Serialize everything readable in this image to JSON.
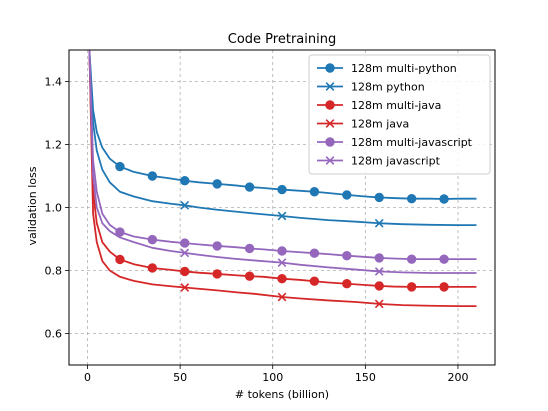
{
  "chart_data": {
    "type": "line",
    "title": "Code Pretraining",
    "xlabel": "# tokens (billion)",
    "ylabel": "validation loss",
    "xlim": [
      -10,
      220
    ],
    "ylim": [
      0.5,
      1.5
    ],
    "xticks": [
      0,
      50,
      100,
      150,
      200
    ],
    "yticks": [
      0.6,
      0.8,
      1.0,
      1.2,
      1.4
    ],
    "grid": true,
    "legend_position": "top-right",
    "series": [
      {
        "name": "128m multi-python",
        "color": "#1f77b4",
        "marker": "circle",
        "points": [
          [
            1,
            1.5
          ],
          [
            3,
            1.31
          ],
          [
            5,
            1.24
          ],
          [
            8,
            1.19
          ],
          [
            12,
            1.155
          ],
          [
            17.5,
            1.13
          ],
          [
            25,
            1.113
          ],
          [
            35,
            1.1
          ],
          [
            45,
            1.092
          ],
          [
            52.5,
            1.085
          ],
          [
            60,
            1.08
          ],
          [
            70,
            1.075
          ],
          [
            80,
            1.07
          ],
          [
            87.5,
            1.065
          ],
          [
            95,
            1.062
          ],
          [
            105,
            1.057
          ],
          [
            115,
            1.053
          ],
          [
            122.5,
            1.05
          ],
          [
            130,
            1.046
          ],
          [
            140,
            1.04
          ],
          [
            150,
            1.035
          ],
          [
            157.5,
            1.032
          ],
          [
            165,
            1.03
          ],
          [
            175,
            1.028
          ],
          [
            185,
            1.028
          ],
          [
            192.5,
            1.027
          ],
          [
            200,
            1.028
          ],
          [
            210,
            1.028
          ]
        ],
        "marker_x": [
          17.5,
          35,
          52.5,
          70,
          87.5,
          105,
          122.5,
          140,
          157.5,
          175,
          192.5
        ]
      },
      {
        "name": "128m python",
        "color": "#1f77b4",
        "marker": "x",
        "points": [
          [
            1,
            1.5
          ],
          [
            3,
            1.27
          ],
          [
            5,
            1.18
          ],
          [
            8,
            1.12
          ],
          [
            12,
            1.08
          ],
          [
            17.5,
            1.05
          ],
          [
            25,
            1.035
          ],
          [
            35,
            1.02
          ],
          [
            45,
            1.012
          ],
          [
            52.5,
            1.007
          ],
          [
            60,
            1.0
          ],
          [
            70,
            0.993
          ],
          [
            80,
            0.987
          ],
          [
            90,
            0.981
          ],
          [
            105,
            0.973
          ],
          [
            115,
            0.967
          ],
          [
            130,
            0.96
          ],
          [
            145,
            0.955
          ],
          [
            157.5,
            0.95
          ],
          [
            170,
            0.947
          ],
          [
            185,
            0.945
          ],
          [
            200,
            0.944
          ],
          [
            210,
            0.944
          ]
        ],
        "marker_x": [
          52.5,
          105,
          157.5
        ]
      },
      {
        "name": "128m multi-java",
        "color": "#d62728",
        "marker": "circle",
        "points": [
          [
            1,
            1.5
          ],
          [
            3,
            1.05
          ],
          [
            5,
            0.95
          ],
          [
            8,
            0.89
          ],
          [
            12,
            0.86
          ],
          [
            17.5,
            0.835
          ],
          [
            25,
            0.82
          ],
          [
            35,
            0.808
          ],
          [
            45,
            0.802
          ],
          [
            52.5,
            0.797
          ],
          [
            60,
            0.793
          ],
          [
            70,
            0.789
          ],
          [
            80,
            0.785
          ],
          [
            87.5,
            0.782
          ],
          [
            95,
            0.78
          ],
          [
            105,
            0.774
          ],
          [
            115,
            0.77
          ],
          [
            122.5,
            0.766
          ],
          [
            130,
            0.762
          ],
          [
            140,
            0.758
          ],
          [
            150,
            0.754
          ],
          [
            157.5,
            0.751
          ],
          [
            165,
            0.749
          ],
          [
            175,
            0.748
          ],
          [
            185,
            0.748
          ],
          [
            192.5,
            0.748
          ],
          [
            200,
            0.748
          ],
          [
            210,
            0.748
          ]
        ],
        "marker_x": [
          17.5,
          35,
          52.5,
          70,
          87.5,
          105,
          122.5,
          140,
          157.5,
          175,
          192.5
        ]
      },
      {
        "name": "128m java",
        "color": "#d62728",
        "marker": "x",
        "points": [
          [
            1,
            1.5
          ],
          [
            3,
            0.98
          ],
          [
            5,
            0.89
          ],
          [
            8,
            0.83
          ],
          [
            12,
            0.8
          ],
          [
            17.5,
            0.78
          ],
          [
            25,
            0.767
          ],
          [
            35,
            0.756
          ],
          [
            45,
            0.75
          ],
          [
            52.5,
            0.746
          ],
          [
            60,
            0.742
          ],
          [
            70,
            0.737
          ],
          [
            80,
            0.731
          ],
          [
            90,
            0.726
          ],
          [
            105,
            0.716
          ],
          [
            115,
            0.711
          ],
          [
            130,
            0.705
          ],
          [
            145,
            0.7
          ],
          [
            157.5,
            0.694
          ],
          [
            170,
            0.69
          ],
          [
            185,
            0.688
          ],
          [
            200,
            0.687
          ],
          [
            210,
            0.687
          ]
        ],
        "marker_x": [
          52.5,
          105,
          157.5
        ]
      },
      {
        "name": "128m multi-javascript",
        "color": "#9467bd",
        "marker": "circle",
        "points": [
          [
            1,
            1.5
          ],
          [
            3,
            1.15
          ],
          [
            5,
            1.05
          ],
          [
            8,
            0.98
          ],
          [
            12,
            0.945
          ],
          [
            17.5,
            0.922
          ],
          [
            25,
            0.908
          ],
          [
            35,
            0.898
          ],
          [
            45,
            0.891
          ],
          [
            52.5,
            0.887
          ],
          [
            60,
            0.883
          ],
          [
            70,
            0.878
          ],
          [
            80,
            0.874
          ],
          [
            87.5,
            0.87
          ],
          [
            95,
            0.867
          ],
          [
            105,
            0.862
          ],
          [
            115,
            0.858
          ],
          [
            122.5,
            0.855
          ],
          [
            130,
            0.852
          ],
          [
            140,
            0.847
          ],
          [
            150,
            0.843
          ],
          [
            157.5,
            0.84
          ],
          [
            165,
            0.838
          ],
          [
            175,
            0.836
          ],
          [
            185,
            0.836
          ],
          [
            192.5,
            0.836
          ],
          [
            200,
            0.836
          ],
          [
            210,
            0.836
          ]
        ],
        "marker_x": [
          17.5,
          35,
          52.5,
          70,
          87.5,
          105,
          122.5,
          140,
          157.5,
          175,
          192.5
        ]
      },
      {
        "name": "128m javascript",
        "color": "#9467bd",
        "marker": "x",
        "points": [
          [
            1,
            1.5
          ],
          [
            3,
            1.1
          ],
          [
            5,
            1.0
          ],
          [
            8,
            0.95
          ],
          [
            12,
            0.925
          ],
          [
            17.5,
            0.905
          ],
          [
            25,
            0.89
          ],
          [
            35,
            0.872
          ],
          [
            45,
            0.862
          ],
          [
            52.5,
            0.856
          ],
          [
            60,
            0.85
          ],
          [
            70,
            0.843
          ],
          [
            80,
            0.837
          ],
          [
            90,
            0.832
          ],
          [
            105,
            0.825
          ],
          [
            115,
            0.818
          ],
          [
            130,
            0.81
          ],
          [
            145,
            0.803
          ],
          [
            157.5,
            0.797
          ],
          [
            170,
            0.794
          ],
          [
            185,
            0.792
          ],
          [
            200,
            0.792
          ],
          [
            210,
            0.792
          ]
        ],
        "marker_x": [
          52.5,
          105,
          157.5
        ]
      }
    ]
  }
}
